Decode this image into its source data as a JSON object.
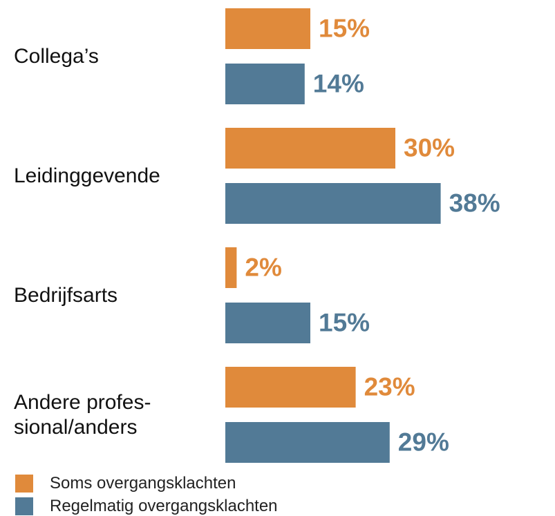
{
  "chart_data": {
    "type": "bar",
    "orientation": "horizontal",
    "categories": [
      "Collega’s",
      "Leidinggevende",
      "Bedrijfsarts",
      "Andere profes-\nsional/anders"
    ],
    "series": [
      {
        "name": "Soms overgangsklachten",
        "color": "#e08a3b",
        "values": [
          15,
          30,
          2,
          23
        ],
        "value_labels": [
          "15%",
          "30%",
          "2%",
          "23%"
        ]
      },
      {
        "name": "Regelmatig overgangsklachten",
        "color": "#527a96",
        "values": [
          14,
          38,
          15,
          29
        ],
        "value_labels": [
          "14%",
          "38%",
          "15%",
          "29%"
        ]
      }
    ]
  }
}
